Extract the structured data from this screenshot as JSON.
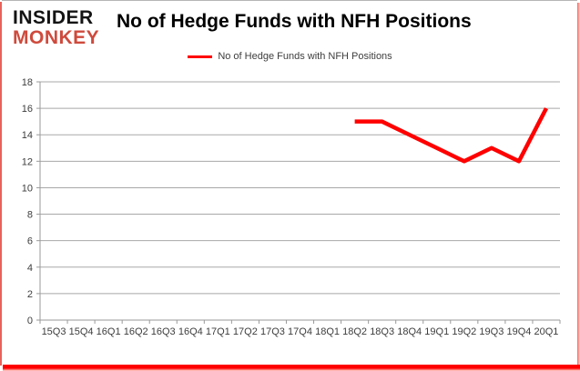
{
  "logo": {
    "line1": "INSIDER",
    "line2": "MONKEY",
    "line1_color": "#141414",
    "line2_color": "#cf4a3c"
  },
  "header": {
    "title": "No of Hedge Funds with NFH Positions"
  },
  "legend": {
    "label": "No of Hedge Funds with NFH Positions"
  },
  "colors": {
    "series_line": "#ff0000",
    "gridline": "#a8a8a8",
    "axis": "#9a9a9a",
    "tick_label": "#3d3d3d",
    "frame_red": "#ff0000"
  },
  "chart_data": {
    "type": "line",
    "title": "No of Hedge Funds with NFH Positions",
    "categories": [
      "15Q3",
      "15Q4",
      "16Q1",
      "16Q2",
      "16Q3",
      "16Q4",
      "17Q1",
      "17Q2",
      "17Q3",
      "17Q4",
      "18Q1",
      "18Q2",
      "18Q3",
      "18Q4",
      "19Q1",
      "19Q2",
      "19Q3",
      "19Q4",
      "20Q1"
    ],
    "series": [
      {
        "name": "No of Hedge Funds with NFH Positions",
        "color": "#ff0000",
        "values": [
          null,
          null,
          null,
          null,
          null,
          null,
          null,
          null,
          null,
          null,
          null,
          15,
          15,
          14,
          13,
          12,
          13,
          12,
          16
        ]
      }
    ],
    "xlabel": "",
    "ylabel": "",
    "ylim": [
      0,
      18
    ],
    "ytick_step": 2,
    "grid": true,
    "legend_position": "top-center"
  }
}
